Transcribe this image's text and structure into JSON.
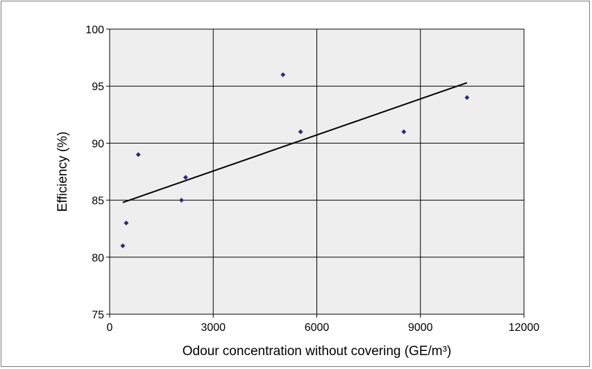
{
  "chart_data": {
    "type": "scatter",
    "xlabel": "Odour concentration without covering (GE/m³)",
    "ylabel": "Efficiency (%)",
    "xlim": [
      0,
      12000
    ],
    "ylim": [
      75,
      100
    ],
    "x_ticks": [
      "0",
      "3000",
      "6000",
      "9000",
      "12000"
    ],
    "y_ticks": [
      "75",
      "80",
      "85",
      "90",
      "95",
      "100"
    ],
    "grid": true,
    "legend": "none",
    "series": [
      {
        "x": [
          380,
          480,
          830,
          2080,
          2200,
          5020,
          5530,
          8520,
          10350
        ],
        "y": [
          81,
          83,
          89,
          85,
          87,
          96,
          91,
          91,
          94
        ]
      }
    ],
    "trendline": {
      "x": [
        380,
        10350
      ],
      "y": [
        84.8,
        95.3
      ]
    },
    "colors": {
      "marker": "#2e2a7a",
      "plot_background": "#eeeeee",
      "grid": "#000000",
      "trendline": "#000000"
    }
  }
}
